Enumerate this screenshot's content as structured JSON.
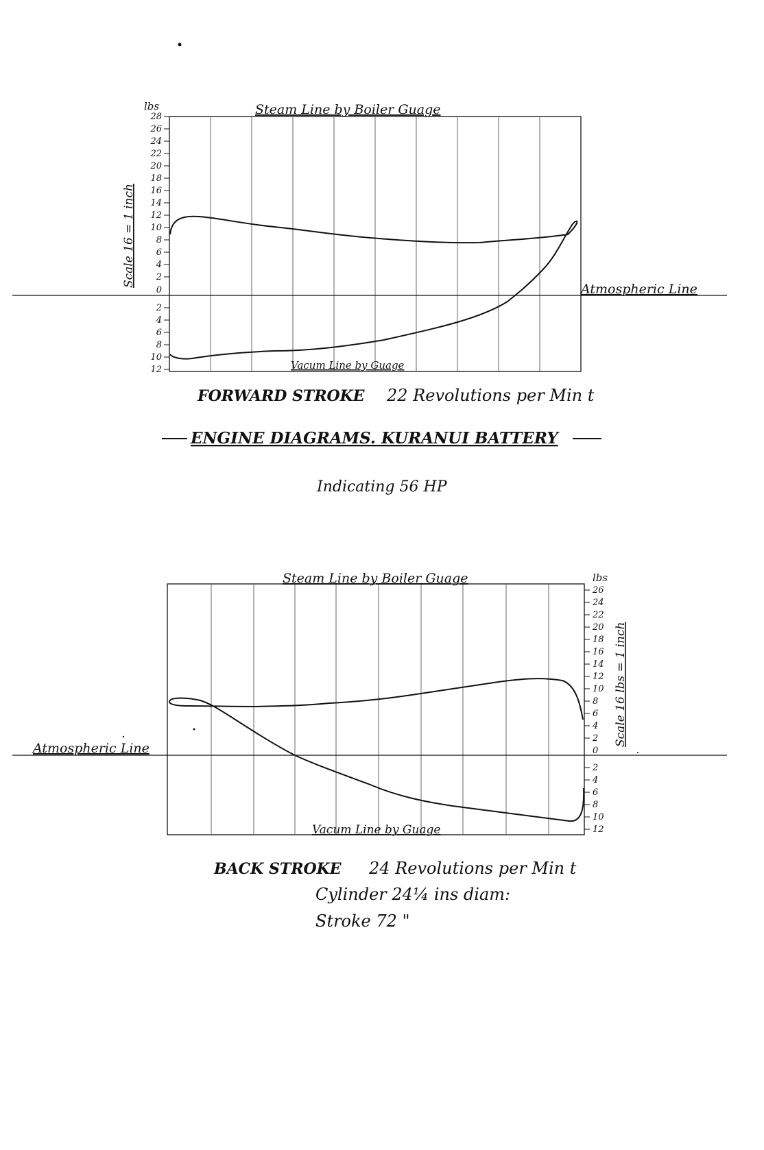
{
  "page": {
    "title": "ENGINE DIAGRAMS. KURANUI BATTERY",
    "subtitle": "Indicating 56 HP"
  },
  "diagram_top": {
    "unit_label": "lbs",
    "steam_label": "Steam Line by Boiler Guage",
    "vacuum_label": "Vacum Line by Guage",
    "atmos_label": "Atmospheric Line",
    "scale_label": "Scale 16 = 1 inch",
    "ticks_above": [
      "28",
      "26",
      "24",
      "22",
      "20",
      "18",
      "16",
      "14",
      "12",
      "10",
      "8",
      "6",
      "4",
      "2",
      "0"
    ],
    "ticks_below": [
      "2",
      "4",
      "6",
      "8",
      "10",
      "12"
    ],
    "caption_bold": "FORWARD STROKE",
    "caption_hand": "22 Revolutions per Min t"
  },
  "diagram_bottom": {
    "unit_label": "lbs",
    "steam_label": "Steam Line by Boiler Guage",
    "vacuum_label": "Vacum Line by Guage",
    "atmos_label": "Atmospheric Line",
    "scale_label": "Scale 16 lbs = 1 inch",
    "ticks_above": [
      "26",
      "24",
      "22",
      "20",
      "18",
      "16",
      "14",
      "12",
      "10",
      "8",
      "6",
      "4",
      "2",
      "0"
    ],
    "ticks_below": [
      "2",
      "4",
      "6",
      "8",
      "10",
      "12"
    ],
    "caption_bold": "BACK STROKE",
    "caption_hand": "24 Revolutions per Min t",
    "cylinder": "Cylinder 24¼ ins diam:",
    "stroke": "Stroke 72   \""
  },
  "colors": {
    "ink": "#111111",
    "grid": "#555555",
    "paper": "#ffffff"
  }
}
